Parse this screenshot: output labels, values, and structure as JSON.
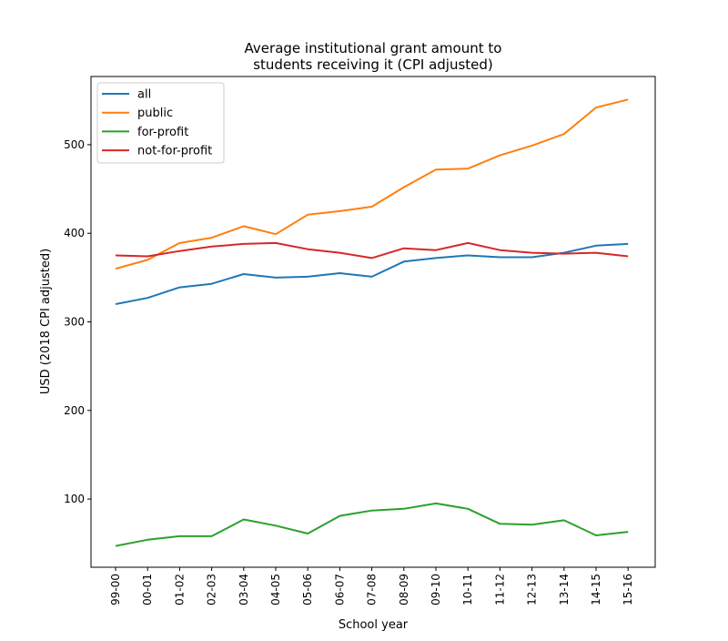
{
  "chart_data": {
    "type": "line",
    "title_lines": [
      "Average institutional grant amount to",
      "students receiving it (CPI adjusted)"
    ],
    "xlabel": "School year",
    "ylabel": "USD (2018 CPI adjusted)",
    "categories": [
      "99-00",
      "00-01",
      "01-02",
      "02-03",
      "03-04",
      "04-05",
      "05-06",
      "06-07",
      "07-08",
      "08-09",
      "09-10",
      "10-11",
      "11-12",
      "12-13",
      "13-14",
      "14-15",
      "15-16"
    ],
    "ylim": [
      23,
      577
    ],
    "yticks": [
      100,
      200,
      300,
      400,
      500
    ],
    "grid": false,
    "legend_position": "top-left",
    "series": [
      {
        "name": "all",
        "color": "#1f77b4",
        "values": [
          320,
          327,
          339,
          343,
          354,
          350,
          351,
          355,
          351,
          368,
          372,
          375,
          373,
          373,
          378,
          386,
          388
        ]
      },
      {
        "name": "public",
        "color": "#ff7f0e",
        "values": [
          360,
          370,
          389,
          395,
          408,
          399,
          421,
          425,
          430,
          452,
          472,
          473,
          488,
          499,
          512,
          542,
          551
        ]
      },
      {
        "name": "for-profit",
        "color": "#2ca02c",
        "values": [
          47,
          54,
          58,
          58,
          77,
          70,
          61,
          81,
          87,
          89,
          95,
          89,
          72,
          71,
          76,
          59,
          63
        ]
      },
      {
        "name": "not-for-profit",
        "color": "#d62728",
        "values": [
          375,
          374,
          380,
          385,
          388,
          389,
          382,
          378,
          372,
          383,
          381,
          389,
          381,
          378,
          377,
          378,
          374
        ]
      }
    ]
  }
}
